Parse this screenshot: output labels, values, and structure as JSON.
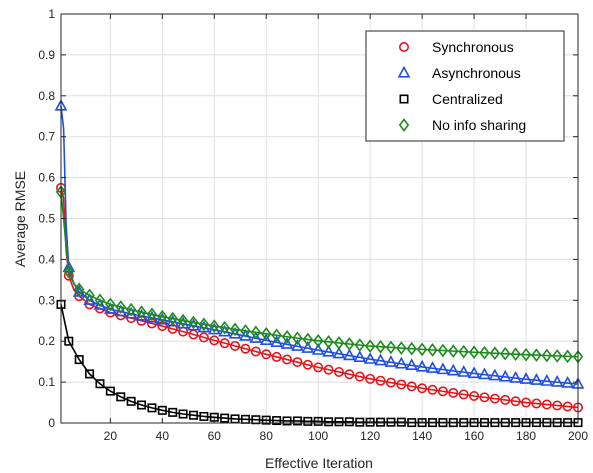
{
  "chart_data": {
    "type": "line",
    "title": "",
    "xlabel": "Effective Iteration",
    "ylabel": "Average RMSE",
    "xlim": [
      1,
      200
    ],
    "ylim": [
      0,
      1
    ],
    "xticks": [
      20,
      40,
      60,
      80,
      100,
      120,
      140,
      160,
      180,
      200
    ],
    "yticks": [
      0,
      0.1,
      0.2,
      0.3,
      0.4,
      0.5,
      0.6,
      0.7,
      0.8,
      0.9,
      1
    ],
    "grid": true,
    "legend_position": "top-right",
    "series": [
      {
        "name": "Synchronous",
        "color": "#e8141b",
        "marker": "circle",
        "x": [
          1,
          2,
          3,
          4,
          6,
          8,
          12,
          16,
          20,
          30,
          40,
          50,
          60,
          70,
          80,
          90,
          100,
          120,
          140,
          160,
          180,
          200
        ],
        "y": [
          0.575,
          0.55,
          0.42,
          0.36,
          0.325,
          0.31,
          0.29,
          0.28,
          0.27,
          0.253,
          0.237,
          0.22,
          0.202,
          0.185,
          0.168,
          0.152,
          0.136,
          0.108,
          0.085,
          0.066,
          0.05,
          0.038
        ]
      },
      {
        "name": "Asynchronous",
        "color": "#1f4fe0",
        "marker": "triangle",
        "x": [
          1,
          2,
          3,
          4,
          6,
          8,
          12,
          16,
          20,
          30,
          40,
          50,
          60,
          70,
          80,
          90,
          100,
          120,
          140,
          160,
          180,
          200
        ],
        "y": [
          0.775,
          0.72,
          0.48,
          0.38,
          0.34,
          0.32,
          0.3,
          0.288,
          0.278,
          0.264,
          0.252,
          0.24,
          0.228,
          0.215,
          0.202,
          0.19,
          0.178,
          0.156,
          0.137,
          0.121,
          0.107,
          0.095
        ]
      },
      {
        "name": "Centralized",
        "color": "#000000",
        "marker": "square",
        "x": [
          1,
          4,
          8,
          12,
          16,
          20,
          24,
          28,
          32,
          36,
          40,
          44,
          48,
          52,
          56,
          60,
          64,
          68,
          72,
          76,
          80,
          84,
          88,
          92,
          96,
          100,
          104,
          108,
          112,
          116,
          120,
          124,
          128,
          132,
          136,
          140,
          144,
          148,
          152,
          156,
          160,
          164,
          168,
          172,
          176,
          180,
          184,
          188,
          192,
          196,
          200
        ],
        "y": [
          0.29,
          0.2,
          0.155,
          0.12,
          0.096,
          0.078,
          0.064,
          0.053,
          0.044,
          0.037,
          0.031,
          0.026,
          0.022,
          0.019,
          0.016,
          0.014,
          0.012,
          0.01,
          0.009,
          0.008,
          0.007,
          0.006,
          0.005,
          0.005,
          0.004,
          0.004,
          0.003,
          0.003,
          0.003,
          0.002,
          0.002,
          0.002,
          0.002,
          0.002,
          0.001,
          0.001,
          0.001,
          0.001,
          0.001,
          0.001,
          0.001,
          0.001,
          0.001,
          0.001,
          0.001,
          0.001,
          0.001,
          0.001,
          0.001,
          0.001,
          0.001
        ]
      },
      {
        "name": "No info sharing",
        "color": "#1d8a1d",
        "marker": "diamond",
        "x": [
          1,
          2,
          3,
          4,
          6,
          8,
          12,
          16,
          20,
          30,
          40,
          50,
          60,
          70,
          80,
          90,
          100,
          120,
          140,
          160,
          180,
          200
        ],
        "y": [
          0.565,
          0.5,
          0.43,
          0.37,
          0.34,
          0.327,
          0.312,
          0.3,
          0.29,
          0.274,
          0.26,
          0.248,
          0.237,
          0.227,
          0.218,
          0.209,
          0.201,
          0.188,
          0.18,
          0.173,
          0.167,
          0.162
        ]
      }
    ]
  }
}
